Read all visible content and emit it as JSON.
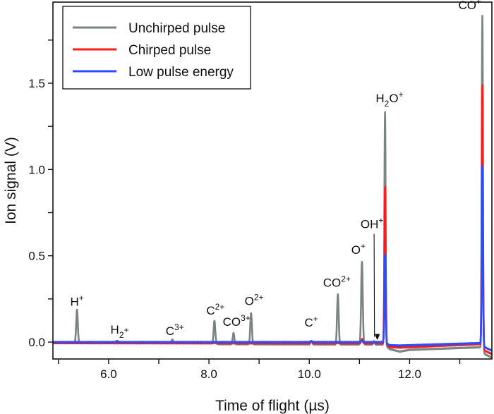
{
  "chart_data": {
    "type": "line",
    "xlabel": "Time of flight (µs)",
    "ylabel": "Ion signal (V)",
    "xlim": [
      4.89,
      13.64
    ],
    "ylim": [
      -0.098,
      1.97
    ],
    "xticks": [
      5,
      6,
      7,
      8,
      9,
      10,
      11,
      12,
      13
    ],
    "xtick_labels": {
      "6": "6.0",
      "8": "8.0",
      "10": "10.0",
      "12": "12.0"
    },
    "yticks": [
      0,
      0.25,
      0.5,
      0.75,
      1.0,
      1.25,
      1.5,
      1.75
    ],
    "ytick_labels": {
      "0": "0.0",
      "0.5": "0.5",
      "1": "1.0",
      "1.5": "1.5"
    },
    "grid": false,
    "legend_placement": "top-left",
    "series": [
      {
        "name": "Unchirped pulse",
        "color": "#7a8582",
        "baseline": [
          [
            4.89,
            -0.004
          ],
          [
            8.1,
            -0.006
          ],
          [
            8.2,
            -0.012
          ],
          [
            11.5,
            -0.014
          ],
          [
            11.6,
            -0.04
          ],
          [
            11.8,
            -0.055
          ],
          [
            12.0,
            -0.045
          ],
          [
            13.4,
            -0.03
          ],
          [
            13.5,
            -0.07
          ],
          [
            13.64,
            -0.09
          ]
        ],
        "peaks": [
          [
            5.37,
            0.19
          ],
          [
            6.17,
            0.005
          ],
          [
            7.27,
            0.02
          ],
          [
            8.11,
            0.13
          ],
          [
            8.49,
            0.065
          ],
          [
            8.84,
            0.18
          ],
          [
            10.04,
            0.02
          ],
          [
            10.57,
            0.29
          ],
          [
            11.05,
            0.48
          ],
          [
            11.29,
            0.01
          ],
          [
            11.51,
            1.35
          ],
          [
            13.45,
            1.94
          ]
        ]
      },
      {
        "name": "Chirped pulse",
        "color": "#ff1a1a",
        "baseline": [
          [
            4.89,
            -0.006
          ],
          [
            11.5,
            -0.008
          ],
          [
            11.6,
            -0.028
          ],
          [
            11.8,
            -0.032
          ],
          [
            13.4,
            -0.012
          ],
          [
            13.5,
            -0.05
          ],
          [
            13.64,
            -0.07
          ]
        ],
        "peaks": [
          [
            8.11,
            0.004
          ],
          [
            10.04,
            0.012
          ],
          [
            10.57,
            0.004
          ],
          [
            11.05,
            0.025
          ],
          [
            11.29,
            0.012
          ],
          [
            11.51,
            0.91
          ],
          [
            13.45,
            1.52
          ]
        ]
      },
      {
        "name": "Low pulse energy",
        "color": "#2b4cff",
        "baseline": [
          [
            4.89,
            0.0
          ],
          [
            11.5,
            0.0
          ],
          [
            11.6,
            -0.018
          ],
          [
            11.8,
            -0.02
          ],
          [
            13.4,
            -0.006
          ],
          [
            13.5,
            -0.03
          ],
          [
            13.64,
            -0.05
          ]
        ],
        "peaks": [
          [
            6.17,
            0.006
          ],
          [
            10.04,
            0.005
          ],
          [
            11.05,
            0.008
          ],
          [
            11.51,
            0.51
          ],
          [
            13.45,
            1.04
          ]
        ]
      }
    ],
    "annotations": [
      {
        "x": 5.37,
        "y": 0.21,
        "parts": [
          [
            "H",
            ""
          ],
          [
            "+",
            "sup"
          ]
        ]
      },
      {
        "x": 6.22,
        "y": 0.05,
        "parts": [
          [
            "H",
            ""
          ],
          [
            "2",
            "sub"
          ],
          [
            "+",
            "sup"
          ]
        ]
      },
      {
        "x": 7.32,
        "y": 0.04,
        "parts": [
          [
            "C",
            ""
          ],
          [
            "3+",
            "sup"
          ]
        ]
      },
      {
        "x": 8.13,
        "y": 0.16,
        "parts": [
          [
            "C",
            ""
          ],
          [
            "2+",
            "sup"
          ]
        ]
      },
      {
        "x": 8.55,
        "y": 0.095,
        "parts": [
          [
            "CO",
            ""
          ],
          [
            "3+",
            "sup"
          ]
        ]
      },
      {
        "x": 8.9,
        "y": 0.215,
        "parts": [
          [
            "O",
            ""
          ],
          [
            "2+",
            "sup"
          ]
        ]
      },
      {
        "x": 10.04,
        "y": 0.09,
        "parts": [
          [
            "C",
            ""
          ],
          [
            "+",
            "sup"
          ]
        ]
      },
      {
        "x": 10.55,
        "y": 0.32,
        "parts": [
          [
            "CO",
            ""
          ],
          [
            "2+",
            "sup"
          ]
        ]
      },
      {
        "x": 10.98,
        "y": 0.51,
        "parts": [
          [
            "O",
            ""
          ],
          [
            "+",
            "sup"
          ]
        ]
      },
      {
        "x": 11.25,
        "y": 0.66,
        "parts": [
          [
            "OH",
            ""
          ],
          [
            "+",
            "sup"
          ]
        ],
        "arrow_to": [
          11.3,
          0.03
        ]
      },
      {
        "x": 11.6,
        "y": 1.39,
        "parts": [
          [
            "H",
            ""
          ],
          [
            "2",
            "sub"
          ],
          [
            "O",
            ""
          ],
          [
            "+",
            "sup"
          ]
        ]
      },
      {
        "x": 13.2,
        "y": 1.93,
        "parts": [
          [
            "CO",
            ""
          ],
          [
            "+",
            "sup"
          ]
        ]
      }
    ]
  }
}
